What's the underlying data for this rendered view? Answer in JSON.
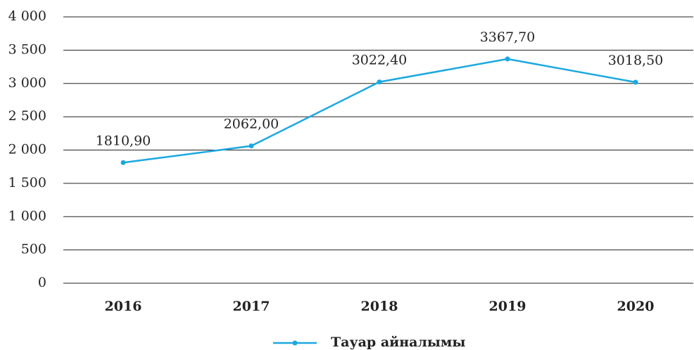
{
  "chart_data": {
    "type": "line",
    "categories": [
      "2016",
      "2017",
      "2018",
      "2019",
      "2020"
    ],
    "series": [
      {
        "name": "Тауар айналымы",
        "color": "#1ba8e0",
        "values": [
          1810.9,
          2062.0,
          3022.4,
          3367.7,
          3018.5
        ],
        "value_labels": [
          "1810,90",
          "2062,00",
          "3022,40",
          "3367,70",
          "3018,50"
        ]
      }
    ],
    "ylim": [
      0,
      4000
    ],
    "yticks": [
      0,
      500,
      {
        "value": 1000,
        "label": "1 000"
      },
      {
        "value": 1500,
        "label": "1 500"
      },
      {
        "value": 2000,
        "label": "2 000"
      },
      {
        "value": 2500,
        "label": "2 500"
      },
      {
        "value": 3000,
        "label": "3 000"
      },
      {
        "value": 3500,
        "label": "3 500"
      },
      {
        "value": 4000,
        "label": "4 000"
      }
    ],
    "grid": true,
    "legend": "bottom"
  }
}
